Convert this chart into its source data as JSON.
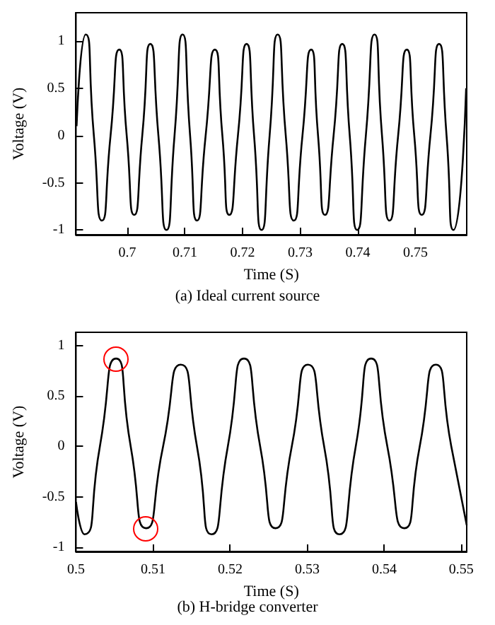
{
  "chart_data": [
    {
      "type": "line",
      "title": "(a) Ideal current source",
      "xlabel": "Time (S)",
      "ylabel": "Voltage (V)",
      "xlim": [
        0.6911,
        0.7589
      ],
      "ylim": [
        -1.05,
        1.3
      ],
      "xticks": [
        0.7,
        0.71,
        0.72,
        0.73,
        0.74,
        0.75
      ],
      "yticks": [
        -1,
        -0.5,
        0,
        0.5,
        1
      ],
      "grid": false,
      "marker": "none",
      "line_style": "solid",
      "series": [
        {
          "color": "#000000",
          "x": [
            0.6912,
            0.6928,
            0.6942,
            0.6956,
            0.6971,
            0.6986,
            0.6999,
            0.7012,
            0.7026,
            0.704,
            0.7054,
            0.7068,
            0.7082,
            0.7096,
            0.7109,
            0.7121,
            0.7136,
            0.7152,
            0.7165,
            0.7177,
            0.7192,
            0.7207,
            0.722,
            0.7233,
            0.7247,
            0.7261,
            0.7275,
            0.7289,
            0.7304,
            0.7319,
            0.7331,
            0.7343,
            0.7358,
            0.7373,
            0.7386,
            0.7399,
            0.7414,
            0.7429,
            0.7442,
            0.7455,
            0.747,
            0.7485,
            0.7498,
            0.7511,
            0.7526,
            0.7541,
            0.7554,
            0.7566,
            0.7588
          ],
          "values": [
            0.1,
            1.07,
            0,
            -0.9,
            0,
            0.91,
            0,
            -0.84,
            0,
            0.97,
            0,
            -1,
            0,
            1.07,
            0,
            -0.9,
            0,
            0.91,
            0,
            -0.84,
            0,
            0.97,
            0,
            -1,
            0,
            1.07,
            0,
            -0.9,
            0,
            0.91,
            0,
            -0.84,
            0,
            0.97,
            0,
            -1,
            0,
            1.07,
            0,
            -0.9,
            0,
            0.91,
            0,
            -0.84,
            0,
            0.97,
            0,
            -1,
            0.5
          ]
        }
      ]
    },
    {
      "type": "line",
      "title": "(b) H-bridge converter",
      "xlabel": "Time (S)",
      "ylabel": "Voltage (V)",
      "xlim": [
        0.5,
        0.5507
      ],
      "ylim": [
        -1.04,
        1.13
      ],
      "xticks": [
        0.5,
        0.51,
        0.52,
        0.53,
        0.54,
        0.55
      ],
      "yticks": [
        -1,
        -0.5,
        0,
        0.5,
        1
      ],
      "grid": false,
      "marker": "none",
      "line_style": "solid",
      "series": [
        {
          "color": "#000000",
          "x": [
            0.5,
            0.5011,
            0.5031,
            0.5052,
            0.5071,
            0.5091,
            0.5113,
            0.5136,
            0.5157,
            0.5176,
            0.5197,
            0.5218,
            0.5239,
            0.5259,
            0.528,
            0.5301,
            0.5322,
            0.5342,
            0.5363,
            0.5383,
            0.5404,
            0.5426,
            0.5446,
            0.5467,
            0.5487,
            0.5507
          ],
          "values": [
            -0.55,
            -0.87,
            0,
            0.87,
            0,
            -0.81,
            0,
            0.81,
            0,
            -0.87,
            0,
            0.87,
            0,
            -0.81,
            0,
            0.81,
            0,
            -0.87,
            0,
            0.87,
            0,
            -0.81,
            0,
            0.81,
            0,
            -0.78
          ]
        }
      ]
    }
  ]
}
